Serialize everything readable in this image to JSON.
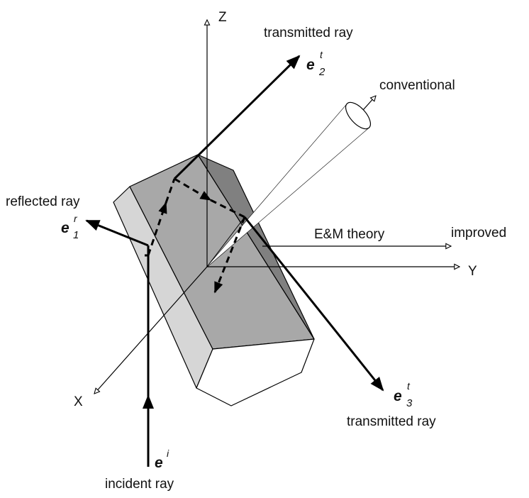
{
  "axes": {
    "z_label": "Z",
    "y_label": "Y",
    "x_label": "X"
  },
  "labels": {
    "transmitted_top": "transmitted ray",
    "transmitted_bottom": "transmitted ray",
    "conventional": "conventional",
    "reflected": "reflected ray",
    "em_theory": "E&M theory",
    "improved": "improved",
    "incident": "incident ray"
  },
  "vectors": {
    "e2t": {
      "base": "e",
      "sup": "t",
      "sub": "2"
    },
    "e3t": {
      "base": "e",
      "sup": "t",
      "sub": "3"
    },
    "e1r": {
      "base": "e",
      "sup": "r",
      "sub": "1"
    },
    "ei": {
      "base": "e",
      "sup": "i"
    }
  },
  "colors": {
    "face_light": "#d6d6d6",
    "face_mid": "#a8a8a8",
    "face_dark": "#808080",
    "face_end": "#ffffff",
    "stroke": "#000000"
  }
}
